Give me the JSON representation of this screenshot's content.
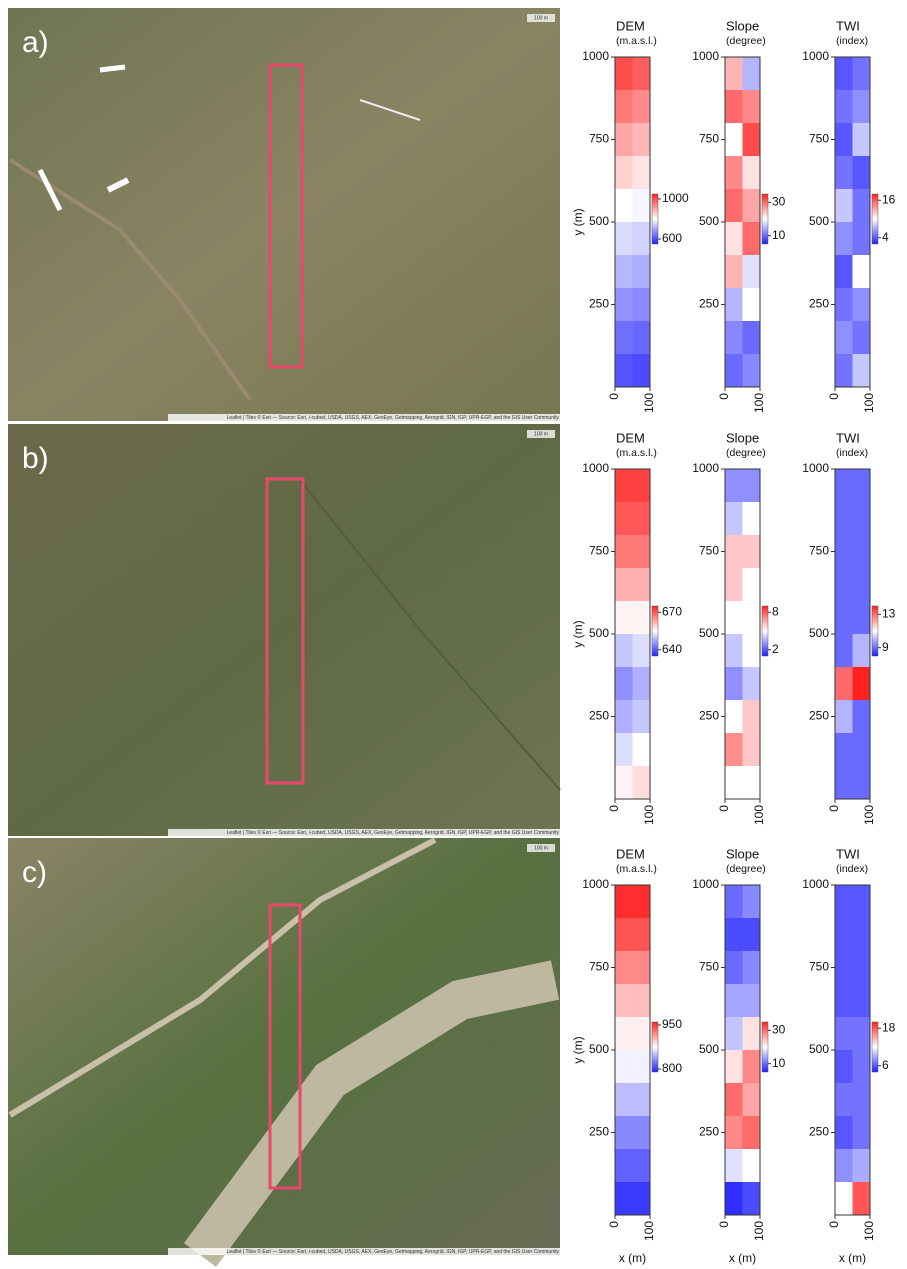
{
  "figure": {
    "panels": [
      {
        "label": "a)",
        "scale": "100 m",
        "attribution": "Leaflet | Tiles © Esri — Source: Esri, i-cubed, USDA, USGS, AEX, GeoEye, Getmapping, Aerogrid, IGN, IGP, UPR-EGP, and the GIS User Community"
      },
      {
        "label": "b)",
        "scale": "100 m",
        "attribution": "Leaflet | Tiles © Esri — Source: Esri, i-cubed, USDA, USGS, AEX, GeoEye, Getmapping, Aerogrid, IGN, IGP, UPR-EGP, and the GIS User Community"
      },
      {
        "label": "c)",
        "scale": "100 m",
        "attribution": "Leaflet | Tiles © Esri — Source: Esri, i-cubed, USDA, USGS, AEX, GeoEye, Getmapping, Aerogrid, IGN, IGP, UPR-EGP, and the GIS User Community"
      }
    ]
  },
  "chart_data": [
    {
      "type": "heatmap",
      "title": "DEM",
      "subtitle": "(m.a.s.l.)",
      "ylabel": "y (m)",
      "xlim": [
        0,
        100
      ],
      "xticks": [
        0,
        100
      ],
      "ylim": [
        0,
        1000
      ],
      "yticks": [
        250,
        500,
        750,
        1000
      ],
      "clim": [
        550,
        1050
      ],
      "cticks": [
        600,
        1000
      ],
      "values": [
        [
          1000,
          980
        ],
        [
          950,
          930
        ],
        [
          900,
          880
        ],
        [
          850,
          830
        ],
        [
          800,
          790
        ],
        [
          760,
          750
        ],
        [
          720,
          710
        ],
        [
          680,
          670
        ],
        [
          640,
          630
        ],
        [
          610,
          600
        ]
      ]
    },
    {
      "type": "heatmap",
      "title": "Slope",
      "subtitle": "(degree)",
      "xlim": [
        0,
        100
      ],
      "xticks": [
        0,
        100
      ],
      "ylim": [
        0,
        1000
      ],
      "yticks": [
        250,
        500,
        750,
        1000
      ],
      "clim": [
        5,
        35
      ],
      "cticks": [
        10,
        30
      ],
      "values": [
        [
          25,
          15
        ],
        [
          30,
          28
        ],
        [
          20,
          32
        ],
        [
          28,
          22
        ],
        [
          30,
          26
        ],
        [
          22,
          30
        ],
        [
          25,
          18
        ],
        [
          15,
          20
        ],
        [
          12,
          10
        ],
        [
          10,
          12
        ]
      ]
    },
    {
      "type": "heatmap",
      "title": "TWI",
      "subtitle": "(index)",
      "xlim": [
        0,
        100
      ],
      "xticks": [
        0,
        100
      ],
      "ylim": [
        0,
        1000
      ],
      "yticks": [
        250,
        500,
        750,
        1000
      ],
      "clim": [
        2,
        18
      ],
      "cticks": [
        4,
        16
      ],
      "values": [
        [
          4,
          5
        ],
        [
          5,
          6
        ],
        [
          4,
          8
        ],
        [
          5,
          4
        ],
        [
          8,
          5
        ],
        [
          6,
          5
        ],
        [
          4,
          10
        ],
        [
          5,
          6
        ],
        [
          6,
          5
        ],
        [
          5,
          8
        ]
      ]
    },
    {
      "type": "heatmap",
      "title": "DEM",
      "subtitle": "(m.a.s.l.)",
      "ylabel": "y (m)",
      "xlim": [
        0,
        100
      ],
      "xticks": [
        0,
        100
      ],
      "ylim": [
        0,
        1000
      ],
      "yticks": [
        250,
        500,
        750,
        1000
      ],
      "clim": [
        635,
        675
      ],
      "cticks": [
        640,
        670
      ],
      "values": [
        [
          672,
          672
        ],
        [
          670,
          670
        ],
        [
          667,
          667
        ],
        [
          662,
          662
        ],
        [
          656,
          656
        ],
        [
          650,
          652
        ],
        [
          645,
          648
        ],
        [
          648,
          650
        ],
        [
          652,
          655
        ],
        [
          656,
          658
        ]
      ]
    },
    {
      "type": "heatmap",
      "title": "Slope",
      "subtitle": "(degree)",
      "xlim": [
        0,
        100
      ],
      "xticks": [
        0,
        100
      ],
      "ylim": [
        0,
        1000
      ],
      "yticks": [
        250,
        500,
        750,
        1000
      ],
      "clim": [
        1,
        9
      ],
      "cticks": [
        2,
        8
      ],
      "values": [
        [
          3,
          3
        ],
        [
          4,
          5
        ],
        [
          6,
          6
        ],
        [
          6,
          5
        ],
        [
          5,
          5
        ],
        [
          4,
          5
        ],
        [
          3,
          4
        ],
        [
          5,
          6
        ],
        [
          7,
          6
        ],
        [
          5,
          5
        ]
      ]
    },
    {
      "type": "heatmap",
      "title": "TWI",
      "subtitle": "(index)",
      "xlim": [
        0,
        100
      ],
      "xticks": [
        0,
        100
      ],
      "ylim": [
        0,
        1000
      ],
      "yticks": [
        250,
        500,
        750,
        1000
      ],
      "clim": [
        8,
        14
      ],
      "cticks": [
        9,
        13
      ],
      "values": [
        [
          9,
          9
        ],
        [
          9,
          9
        ],
        [
          9,
          9
        ],
        [
          9,
          9
        ],
        [
          9,
          9
        ],
        [
          9,
          10
        ],
        [
          13,
          14
        ],
        [
          10,
          9
        ],
        [
          9,
          9
        ],
        [
          9,
          9
        ]
      ]
    },
    {
      "type": "heatmap",
      "title": "DEM",
      "subtitle": "(m.a.s.l.)",
      "ylabel": "y (m)",
      "xlabel": "x (m)",
      "xlim": [
        0,
        100
      ],
      "xticks": [
        0,
        100
      ],
      "ylim": [
        0,
        1000
      ],
      "yticks": [
        250,
        500,
        750,
        1000
      ],
      "clim": [
        790,
        960
      ],
      "cticks": [
        800,
        950
      ],
      "values": [
        [
          955,
          955
        ],
        [
          940,
          940
        ],
        [
          920,
          920
        ],
        [
          900,
          900
        ],
        [
          880,
          880
        ],
        [
          870,
          870
        ],
        [
          850,
          850
        ],
        [
          830,
          830
        ],
        [
          815,
          815
        ],
        [
          800,
          800
        ]
      ]
    },
    {
      "type": "heatmap",
      "title": "Slope",
      "subtitle": "(degree)",
      "xlabel": "x (m)",
      "xlim": [
        0,
        100
      ],
      "xticks": [
        0,
        100
      ],
      "ylim": [
        0,
        1000
      ],
      "yticks": [
        250,
        500,
        750,
        1000
      ],
      "clim": [
        5,
        35
      ],
      "cticks": [
        10,
        30
      ],
      "values": [
        [
          10,
          12
        ],
        [
          8,
          8
        ],
        [
          10,
          12
        ],
        [
          14,
          14
        ],
        [
          16,
          22
        ],
        [
          22,
          28
        ],
        [
          30,
          26
        ],
        [
          28,
          30
        ],
        [
          18,
          20
        ],
        [
          6,
          8
        ]
      ]
    },
    {
      "type": "heatmap",
      "title": "TWI",
      "subtitle": "(index)",
      "xlabel": "x (m)",
      "xlim": [
        0,
        100
      ],
      "xticks": [
        0,
        100
      ],
      "ylim": [
        0,
        1000
      ],
      "yticks": [
        250,
        500,
        750,
        1000
      ],
      "clim": [
        4,
        20
      ],
      "cticks": [
        6,
        18
      ],
      "values": [
        [
          6,
          6
        ],
        [
          6,
          6
        ],
        [
          6,
          6
        ],
        [
          6,
          6
        ],
        [
          7,
          7
        ],
        [
          6,
          7
        ],
        [
          7,
          7
        ],
        [
          6,
          7
        ],
        [
          8,
          9
        ],
        [
          12,
          18
        ]
      ]
    }
  ]
}
